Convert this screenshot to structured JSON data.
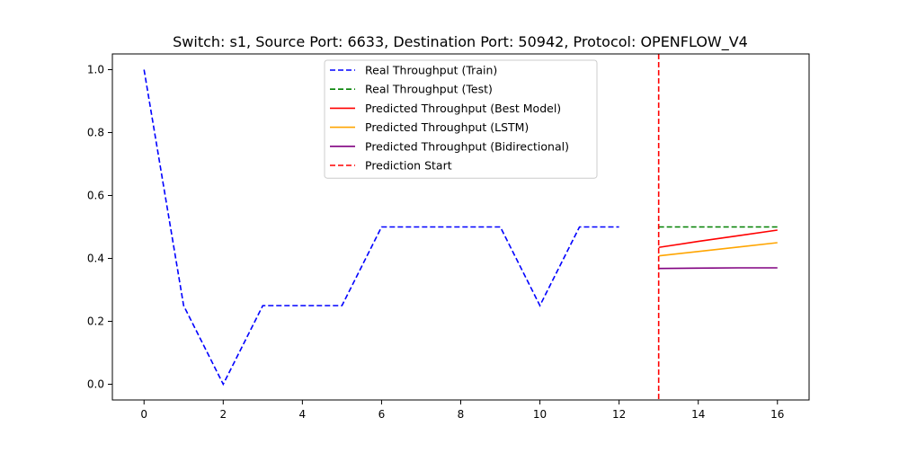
{
  "chart_data": {
    "type": "line",
    "title": "Switch: s1, Source Port: 6633, Destination Port: 50942, Protocol: OPENFLOW_V4",
    "xlabel": "",
    "ylabel": "",
    "xlim": [
      -0.8,
      16.8
    ],
    "ylim": [
      -0.05,
      1.05
    ],
    "xticks": [
      0,
      2,
      4,
      6,
      8,
      10,
      12,
      14,
      16
    ],
    "yticks": [
      0.0,
      0.2,
      0.4,
      0.6,
      0.8,
      1.0
    ],
    "xtick_labels": [
      "0",
      "2",
      "4",
      "6",
      "8",
      "10",
      "12",
      "14",
      "16"
    ],
    "ytick_labels": [
      "0.0",
      "0.2",
      "0.4",
      "0.6",
      "0.8",
      "1.0"
    ],
    "grid": false,
    "legend_position": "top-center",
    "series": [
      {
        "name": "Real Throughput (Train)",
        "color": "#0000ff",
        "dash": true,
        "x": [
          0,
          1,
          2,
          3,
          4,
          5,
          6,
          7,
          8,
          9,
          10,
          11,
          12
        ],
        "y": [
          1.0,
          0.25,
          0.0,
          0.25,
          0.25,
          0.25,
          0.5,
          0.5,
          0.5,
          0.5,
          0.25,
          0.5,
          0.5
        ]
      },
      {
        "name": "Real Throughput (Test)",
        "color": "#008000",
        "dash": true,
        "x": [
          13,
          14,
          15,
          16
        ],
        "y": [
          0.5,
          0.5,
          0.5,
          0.5
        ]
      },
      {
        "name": "Predicted Throughput (Best Model)",
        "color": "#ff0000",
        "dash": false,
        "x": [
          13,
          14,
          15,
          16
        ],
        "y": [
          0.435,
          0.454,
          0.472,
          0.49
        ]
      },
      {
        "name": "Predicted Throughput (LSTM)",
        "color": "#ffa500",
        "dash": false,
        "x": [
          13,
          14,
          15,
          16
        ],
        "y": [
          0.408,
          0.422,
          0.436,
          0.45
        ]
      },
      {
        "name": "Predicted Throughput (Bidirectional)",
        "color": "#800080",
        "dash": false,
        "x": [
          13,
          14,
          15,
          16
        ],
        "y": [
          0.368,
          0.369,
          0.37,
          0.37
        ]
      }
    ],
    "vline": {
      "name": "Prediction Start",
      "x": 13,
      "color": "#ff0000",
      "dash": true
    }
  }
}
